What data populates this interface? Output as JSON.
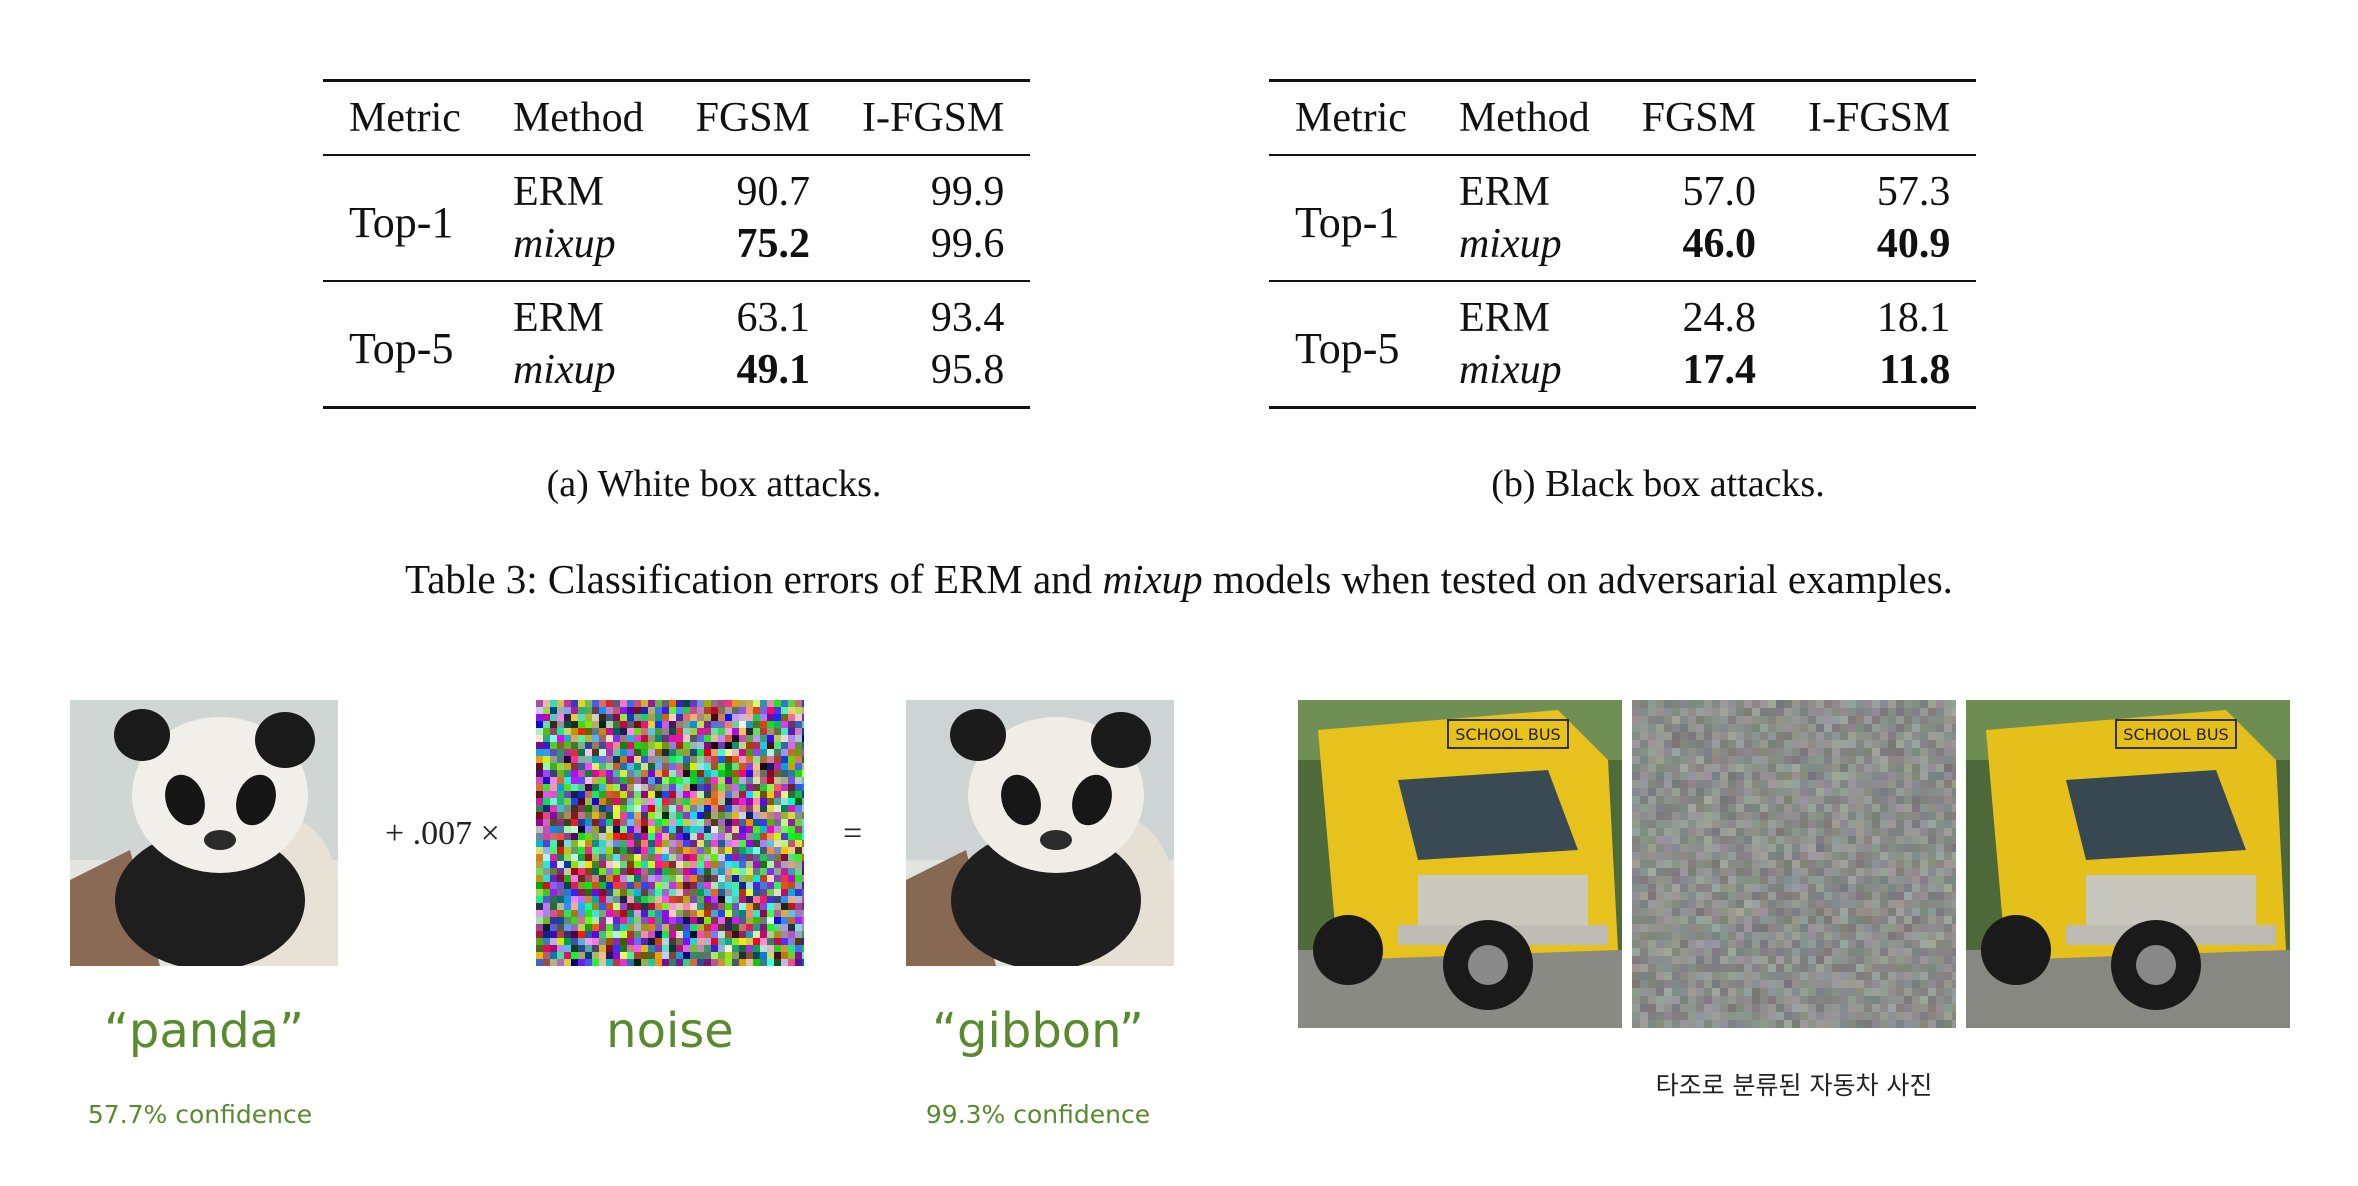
{
  "table_a": {
    "headers": [
      "Metric",
      "Method",
      "FGSM",
      "I-FGSM"
    ],
    "groups": [
      {
        "metric": "Top-1",
        "rows": [
          {
            "method": "ERM",
            "fgsm": "90.7",
            "ifgsm": "99.9"
          },
          {
            "method": "mixup",
            "fgsm": "75.2",
            "ifgsm": "99.6"
          }
        ]
      },
      {
        "metric": "Top-5",
        "rows": [
          {
            "method": "ERM",
            "fgsm": "63.1",
            "ifgsm": "93.4"
          },
          {
            "method": "mixup",
            "fgsm": "49.1",
            "ifgsm": "95.8"
          }
        ]
      }
    ],
    "caption": "(a) White box attacks."
  },
  "table_b": {
    "headers": [
      "Metric",
      "Method",
      "FGSM",
      "I-FGSM"
    ],
    "groups": [
      {
        "metric": "Top-1",
        "rows": [
          {
            "method": "ERM",
            "fgsm": "57.0",
            "ifgsm": "57.3"
          },
          {
            "method": "mixup",
            "fgsm": "46.0",
            "ifgsm": "40.9"
          }
        ]
      },
      {
        "metric": "Top-5",
        "rows": [
          {
            "method": "ERM",
            "fgsm": "24.8",
            "ifgsm": "18.1"
          },
          {
            "method": "mixup",
            "fgsm": "17.4",
            "ifgsm": "11.8"
          }
        ]
      }
    ],
    "caption": "(b) Black box attacks."
  },
  "table_caption": {
    "prefix": "Table 3: Classification errors of ERM and ",
    "emph": "mixup",
    "suffix": " models when tested on adversarial examples."
  },
  "panda_figure": {
    "plus_op": "+ .007 ×",
    "equals_op": "=",
    "left_label": "“panda”",
    "left_conf": "57.7% confidence",
    "mid_label": "noise",
    "right_label": "“gibbon”",
    "right_conf": "99.3% confidence",
    "label_color": "#5a8a2e"
  },
  "bus_figure": {
    "caption": "타조로 분류된 자동차 사진",
    "sign_text": "SCHOOL BUS",
    "bus_color": "#e8c21c"
  }
}
